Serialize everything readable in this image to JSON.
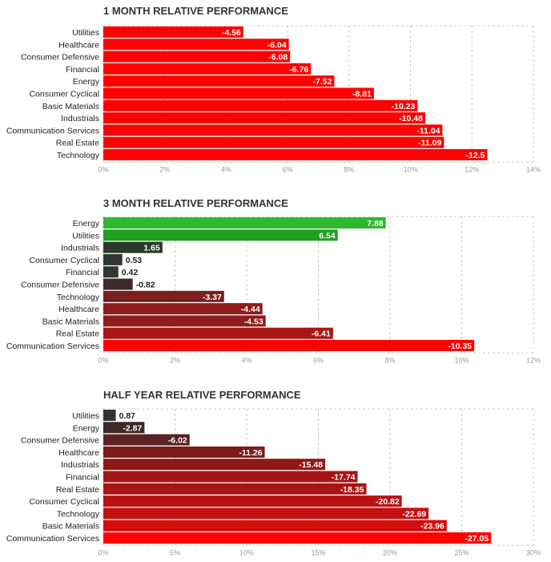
{
  "chart_data": [
    {
      "type": "bar",
      "title": "1 MONTH RELATIVE PERFORMANCE",
      "categories": [
        "Utilities",
        "Healthcare",
        "Consumer Defensive",
        "Financial",
        "Energy",
        "Consumer Cyclical",
        "Basic Materials",
        "Industrials",
        "Communication Services",
        "Real Estate",
        "Technology"
      ],
      "values": [
        -4.56,
        -6.04,
        -6.08,
        -6.76,
        -7.52,
        -8.81,
        -10.23,
        -10.48,
        -11.04,
        -11.09,
        -12.5
      ],
      "value_labels": [
        "-4.56",
        "-6.04",
        "-6.08",
        "-6.76",
        "-7.52",
        "-8.81",
        "-10.23",
        "-10.48",
        "-11.04",
        "-11.09",
        "-12.5"
      ],
      "colors": [
        "#ff0000",
        "#ff0000",
        "#ff0000",
        "#ff0000",
        "#ff0000",
        "#ff0000",
        "#ff0000",
        "#ff0000",
        "#ff0000",
        "#ff0000",
        "#ff0000"
      ],
      "xlim": [
        0,
        14
      ],
      "xticks": [
        "0%",
        "2%",
        "4%",
        "6%",
        "8%",
        "10%",
        "12%",
        "14%"
      ],
      "xlabel": "",
      "ylabel": ""
    },
    {
      "type": "bar",
      "title": "3 MONTH RELATIVE PERFORMANCE",
      "categories": [
        "Energy",
        "Utilities",
        "Industrials",
        "Consumer Cyclical",
        "Financial",
        "Consumer Defensive",
        "Technology",
        "Healthcare",
        "Basic Materials",
        "Real Estate",
        "Communication Services"
      ],
      "values": [
        7.88,
        6.54,
        1.65,
        0.53,
        0.42,
        -0.82,
        -3.37,
        -4.44,
        -4.53,
        -6.41,
        -10.35
      ],
      "value_labels": [
        "7.88",
        "6.54",
        "1.65",
        "0.53",
        "0.42",
        "-0.82",
        "-3.37",
        "-4.44",
        "-4.53",
        "-6.41",
        "-10.35"
      ],
      "colors": [
        "#2db82d",
        "#1f9e1f",
        "#2b3a2b",
        "#303630",
        "#303630",
        "#3d2a2a",
        "#7a1f1f",
        "#8f1c1c",
        "#8f1c1c",
        "#a81616",
        "#ff0000"
      ],
      "xlim": [
        0,
        12
      ],
      "xticks": [
        "0%",
        "2%",
        "4%",
        "6%",
        "8%",
        "10%",
        "12%"
      ],
      "xlabel": "",
      "ylabel": ""
    },
    {
      "type": "bar",
      "title": "HALF YEAR RELATIVE PERFORMANCE",
      "categories": [
        "Utilities",
        "Energy",
        "Consumer Defensive",
        "Healthcare",
        "Industrials",
        "Financial",
        "Real Estate",
        "Consumer Cyclical",
        "Technology",
        "Basic Materials",
        "Communication Services"
      ],
      "values": [
        0.87,
        -2.87,
        -6.02,
        -11.26,
        -15.48,
        -17.74,
        -18.35,
        -20.82,
        -22.69,
        -23.96,
        -27.05
      ],
      "value_labels": [
        "0.87",
        "-2.87",
        "-6.02",
        "-11.26",
        "-15.48",
        "-17.74",
        "-18.35",
        "-20.82",
        "-22.69",
        "-23.96",
        "-27.05"
      ],
      "colors": [
        "#333333",
        "#3f2828",
        "#5a2222",
        "#7a1c1c",
        "#8f1818",
        "#a31515",
        "#a81414",
        "#b81212",
        "#c41010",
        "#d40c0c",
        "#ff0000"
      ],
      "xlim": [
        0,
        30
      ],
      "xticks": [
        "0%",
        "5%",
        "10%",
        "15%",
        "20%",
        "25%",
        "30%"
      ],
      "xlabel": "",
      "ylabel": ""
    }
  ]
}
